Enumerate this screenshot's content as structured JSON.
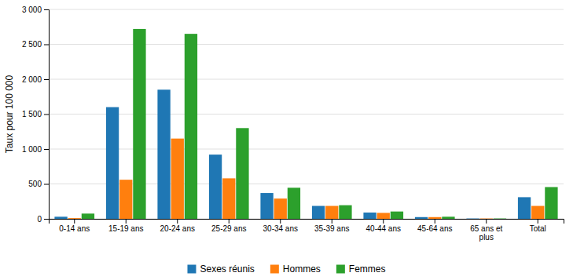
{
  "chart_data": {
    "type": "bar",
    "categories": [
      "0-14 ans",
      "15-19 ans",
      "20-24 ans",
      "25-29 ans",
      "30-34 ans",
      "35-39 ans",
      "40-44 ans",
      "45-64 ans",
      "65 ans et\nplus",
      "Total"
    ],
    "series": [
      {
        "name": "Sexes réunis",
        "values": [
          30,
          1600,
          1850,
          920,
          370,
          185,
          90,
          25,
          5,
          310
        ]
      },
      {
        "name": "Hommes",
        "values": [
          10,
          560,
          1150,
          580,
          290,
          185,
          85,
          25,
          5,
          185
        ]
      },
      {
        "name": "Femmes",
        "values": [
          75,
          2720,
          2650,
          1300,
          445,
          195,
          105,
          30,
          5,
          455
        ]
      }
    ],
    "ylabel": "Taux pour 100 000",
    "ylim": [
      0,
      3000
    ],
    "yticks": [
      0,
      500,
      {
        "value": 1000,
        "label": "1 000"
      },
      {
        "value": 1500,
        "label": "1 500"
      },
      {
        "value": 2000,
        "label": "2 000"
      },
      {
        "value": 2500,
        "label": "2 500"
      },
      {
        "value": 3000,
        "label": "3 000"
      }
    ],
    "grid": true,
    "legend": "bottom"
  }
}
